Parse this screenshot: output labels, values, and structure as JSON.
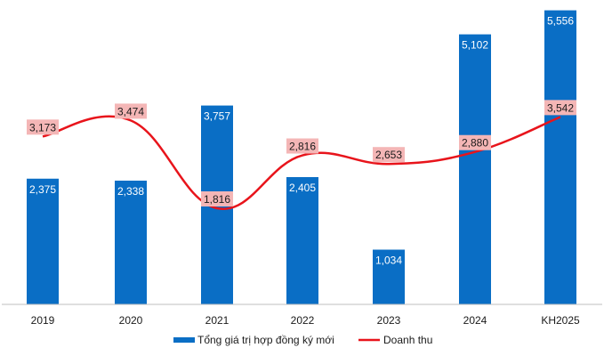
{
  "chart_data": {
    "type": "bar",
    "categories": [
      "2019",
      "2020",
      "2021",
      "2022",
      "2023",
      "2024",
      "KH2025"
    ],
    "series": [
      {
        "name": "Tổng giá trị hợp đồng ký mới",
        "type": "bar",
        "values": [
          2375,
          2338,
          3757,
          2405,
          1034,
          5102,
          5556
        ],
        "labels": [
          "2,375",
          "2,338",
          "3,757",
          "2,405",
          "1,034",
          "5,102",
          "5,556"
        ],
        "color": "#0a6ec5"
      },
      {
        "name": "Doanh thu",
        "type": "line",
        "values": [
          3173,
          3474,
          1816,
          2816,
          2653,
          2880,
          3542
        ],
        "labels": [
          "3,173",
          "3,474",
          "1,816",
          "2,816",
          "2,653",
          "2,880",
          "3,542"
        ],
        "color": "#e8141b",
        "label_bg": "#f4b6b6"
      }
    ],
    "ylim": [
      0,
      5650
    ],
    "grid": false,
    "legend": "bottom"
  }
}
